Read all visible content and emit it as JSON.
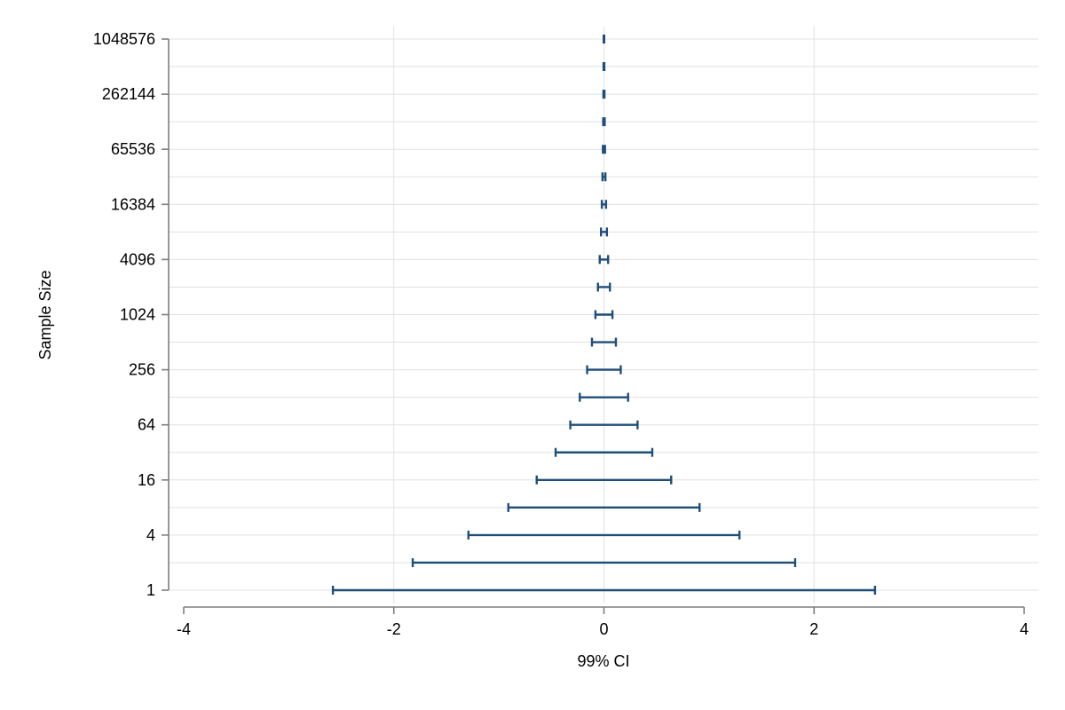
{
  "chart_data": {
    "type": "errorbar",
    "title": "",
    "xlabel": "99% CI",
    "ylabel": "Sample Size",
    "xlim": [
      -4,
      4
    ],
    "x_ticks": [
      -4,
      -2,
      0,
      2,
      4
    ],
    "x_tick_labels": [
      "-4",
      "-2",
      "0",
      "2",
      "4"
    ],
    "y_scale": "log2",
    "y_ticks": [
      1,
      4,
      16,
      64,
      256,
      1024,
      4096,
      16384,
      65536,
      262144,
      1048576
    ],
    "y_tick_labels": [
      "1",
      "4",
      "16",
      "64",
      "256",
      "1024",
      "4096",
      "16384",
      "65536",
      "262144",
      "1048576"
    ],
    "grid": true,
    "bar_color": "#1f4e79",
    "intervals": [
      {
        "n": 1,
        "lower": -2.58,
        "upper": 2.58
      },
      {
        "n": 2,
        "lower": -1.82,
        "upper": 1.82
      },
      {
        "n": 4,
        "lower": -1.29,
        "upper": 1.29
      },
      {
        "n": 8,
        "lower": -0.91,
        "upper": 0.91
      },
      {
        "n": 16,
        "lower": -0.64,
        "upper": 0.64
      },
      {
        "n": 32,
        "lower": -0.46,
        "upper": 0.46
      },
      {
        "n": 64,
        "lower": -0.32,
        "upper": 0.32
      },
      {
        "n": 128,
        "lower": -0.23,
        "upper": 0.23
      },
      {
        "n": 256,
        "lower": -0.16,
        "upper": 0.16
      },
      {
        "n": 512,
        "lower": -0.114,
        "upper": 0.114
      },
      {
        "n": 1024,
        "lower": -0.081,
        "upper": 0.081
      },
      {
        "n": 2048,
        "lower": -0.057,
        "upper": 0.057
      },
      {
        "n": 4096,
        "lower": -0.04,
        "upper": 0.04
      },
      {
        "n": 8192,
        "lower": -0.028,
        "upper": 0.028
      },
      {
        "n": 16384,
        "lower": -0.02,
        "upper": 0.02
      },
      {
        "n": 32768,
        "lower": -0.014,
        "upper": 0.014
      },
      {
        "n": 65536,
        "lower": -0.01,
        "upper": 0.01
      },
      {
        "n": 131072,
        "lower": -0.007,
        "upper": 0.007
      },
      {
        "n": 262144,
        "lower": -0.005,
        "upper": 0.005
      },
      {
        "n": 524288,
        "lower": -0.0036,
        "upper": 0.0036
      },
      {
        "n": 1048576,
        "lower": -0.0025,
        "upper": 0.0025
      }
    ]
  }
}
